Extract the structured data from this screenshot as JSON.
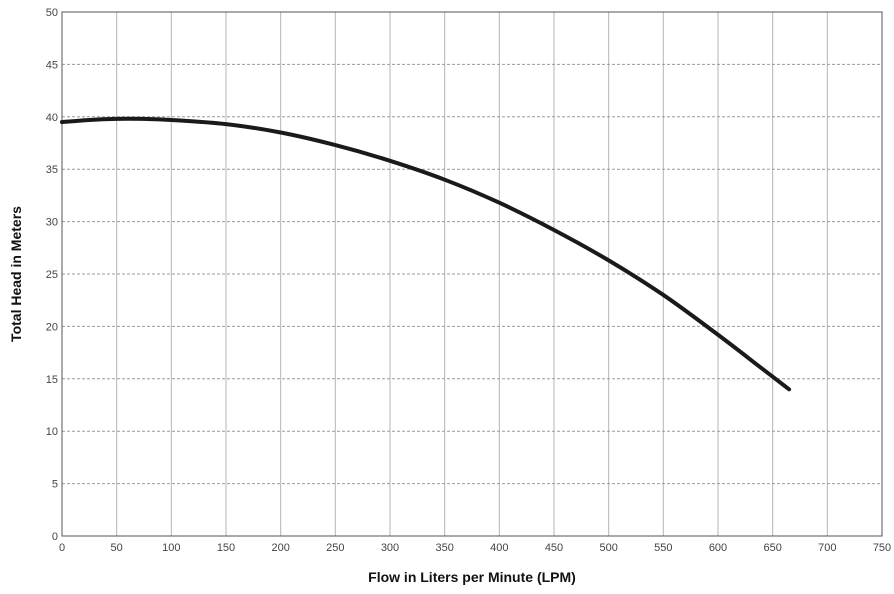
{
  "chart_data": {
    "type": "line",
    "title": "",
    "xlabel": "Flow in Liters per Minute (LPM)",
    "ylabel": "Total Head in Meters",
    "xlim": [
      0,
      750
    ],
    "ylim": [
      0,
      50
    ],
    "x_ticks": [
      0,
      50,
      100,
      150,
      200,
      250,
      300,
      350,
      400,
      450,
      500,
      550,
      600,
      650,
      700,
      750
    ],
    "y_ticks": [
      0,
      5,
      10,
      15,
      20,
      25,
      30,
      35,
      40,
      45,
      50
    ],
    "x_tick_labels": [
      "0",
      "50",
      "100",
      "150",
      "200",
      "250",
      "300",
      "350",
      "400",
      "450",
      "500",
      "550",
      "600",
      "650",
      "700",
      "750"
    ],
    "y_tick_labels": [
      "0",
      "5",
      "10",
      "15",
      "20",
      "25",
      "30",
      "35",
      "40",
      "45",
      "50"
    ],
    "grid": true,
    "legend": "none",
    "series": [
      {
        "color": "#1a1a1a",
        "x": [
          0,
          25,
          50,
          75,
          100,
          150,
          200,
          250,
          300,
          350,
          400,
          450,
          500,
          550,
          600,
          640,
          665
        ],
        "y": [
          39.5,
          39.7,
          39.8,
          39.8,
          39.7,
          39.3,
          38.5,
          37.3,
          35.8,
          34.0,
          31.8,
          29.2,
          26.3,
          23.0,
          19.2,
          16.0,
          14.0
        ]
      }
    ]
  }
}
